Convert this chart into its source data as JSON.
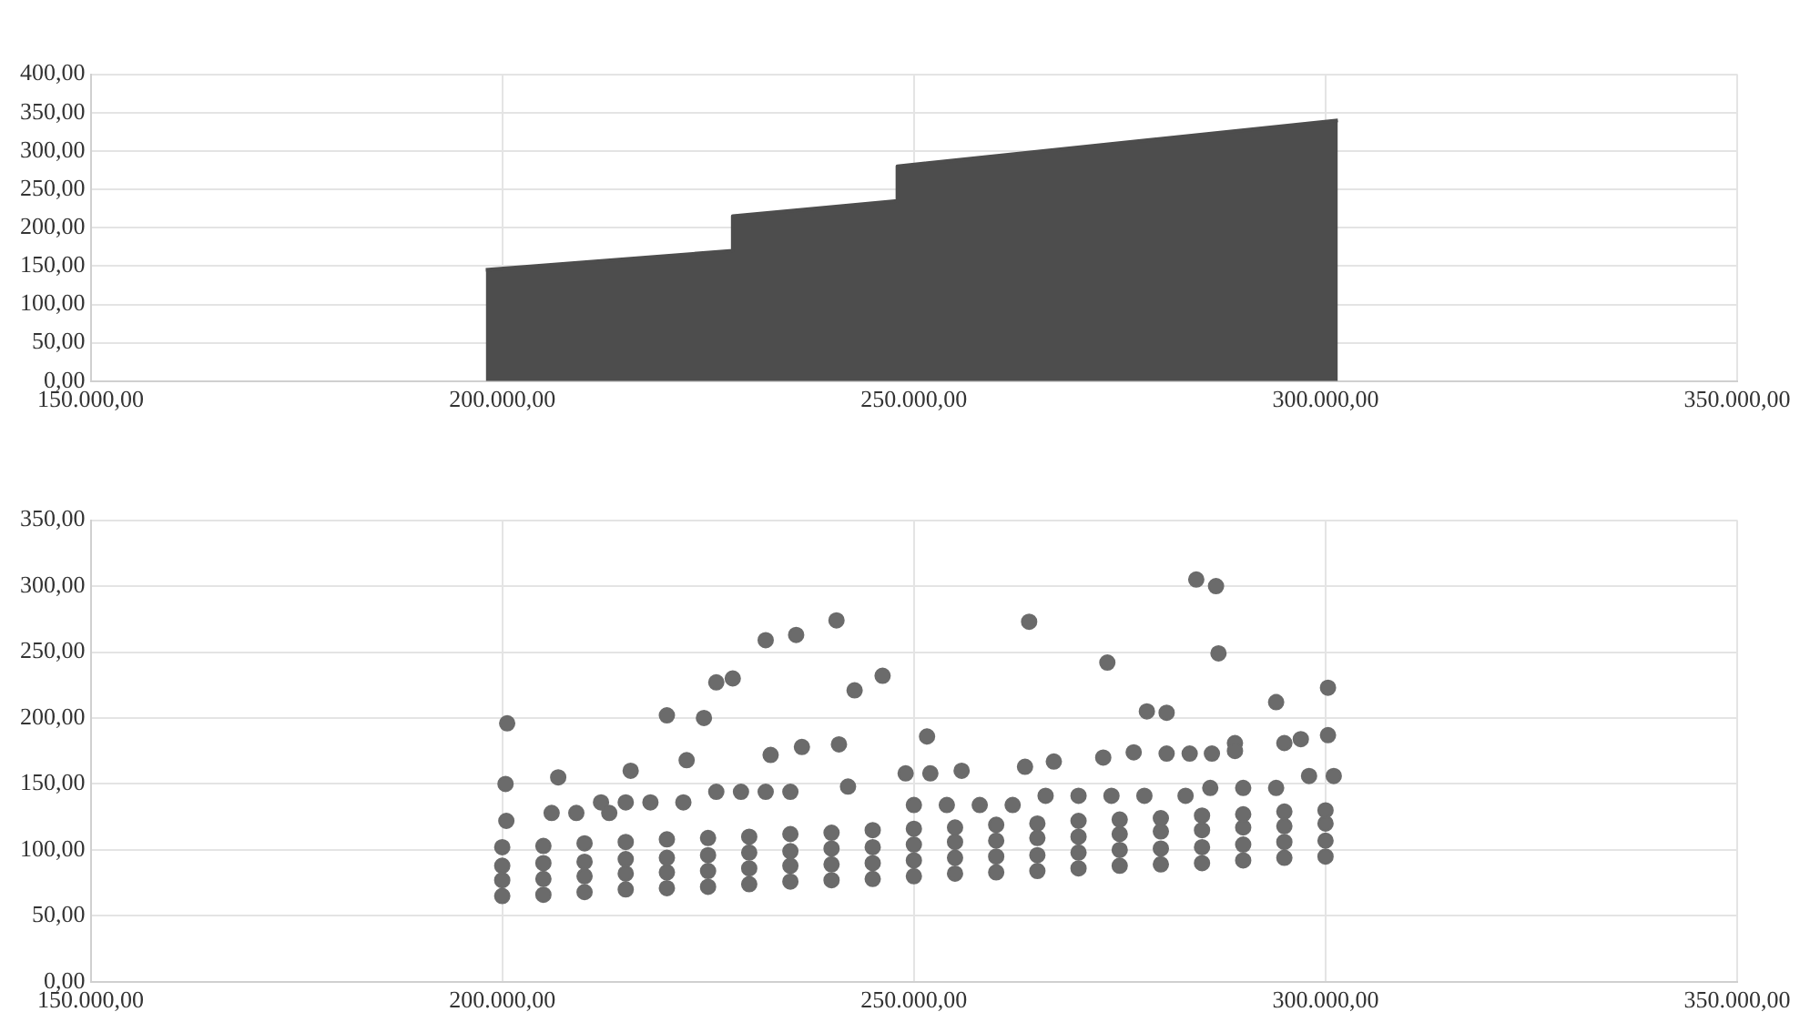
{
  "chart_data": [
    {
      "type": "area",
      "color": "#4d4d4d",
      "grid": true,
      "x": [
        198000,
        228000,
        228000,
        248000,
        248000,
        301500
      ],
      "values": [
        145,
        170,
        215,
        235,
        280,
        340
      ],
      "xlim": [
        150000,
        350000
      ],
      "xticks": [
        {
          "value": 150000,
          "label": "150.000,00"
        },
        {
          "value": 200000,
          "label": "200.000,00"
        },
        {
          "value": 250000,
          "label": "250.000,00"
        },
        {
          "value": 300000,
          "label": "300.000,00"
        },
        {
          "value": 350000,
          "label": "350.000,00"
        }
      ],
      "ylim": [
        0,
        400
      ],
      "yticks": [
        {
          "value": 0,
          "label": "0,00"
        },
        {
          "value": 50,
          "label": "50,00"
        },
        {
          "value": 100,
          "label": "100,00"
        },
        {
          "value": 150,
          "label": "150,00"
        },
        {
          "value": 200,
          "label": "200,00"
        },
        {
          "value": 250,
          "label": "250,00"
        },
        {
          "value": 300,
          "label": "300,00"
        },
        {
          "value": 350,
          "label": "350,00"
        },
        {
          "value": 400,
          "label": "400,00"
        }
      ]
    },
    {
      "type": "scatter",
      "color": "#6b6b6b",
      "grid": true,
      "marker": "circle",
      "x": [
        200000,
        205000,
        210000,
        215000,
        220000,
        225000,
        230000,
        235000,
        240000,
        245000,
        250000,
        255000,
        260000,
        265000,
        270000,
        275000,
        280000,
        285000,
        290000,
        295000,
        300000,
        200000,
        205000,
        210000,
        215000,
        220000,
        225000,
        230000,
        235000,
        240000,
        245000,
        250000,
        255000,
        260000,
        265000,
        270000,
        275000,
        280000,
        285000,
        290000,
        295000,
        300000,
        200000,
        205000,
        210000,
        215000,
        220000,
        225000,
        230000,
        235000,
        240000,
        245000,
        250000,
        255000,
        260000,
        265000,
        270000,
        275000,
        280000,
        285000,
        290000,
        295000,
        300000,
        200000,
        205000,
        210000,
        215000,
        220000,
        225000,
        230000,
        235000,
        240000,
        245000,
        250000,
        255000,
        260000,
        265000,
        270000,
        275000,
        280000,
        285000,
        290000,
        295000,
        300000,
        200600,
        200400,
        206800,
        200500,
        215600,
        220000,
        224500,
        226000,
        228000,
        222400,
        232000,
        235700,
        240600,
        242800,
        246200,
        232600,
        236400,
        240900,
        242000,
        206000,
        209000,
        213000,
        212000,
        215000,
        218000,
        222000,
        226000,
        229000,
        232000,
        235000,
        264000,
        273500,
        284300,
        286700,
        287000,
        278300,
        280700,
        294000,
        300300,
        251600,
        249000,
        252000,
        255800,
        263500,
        267000,
        273000,
        276700,
        280700,
        283500,
        286200,
        289000,
        289000,
        295000,
        297000,
        300300,
        250000,
        254000,
        258000,
        262000,
        266000,
        270000,
        274000,
        278000,
        283000,
        286000,
        290000,
        294000,
        298000,
        301000
      ],
      "values": [
        65,
        66,
        68,
        70,
        71,
        72,
        74,
        76,
        77,
        78,
        80,
        82,
        83,
        84,
        86,
        88,
        89,
        90,
        92,
        94,
        95,
        77,
        78,
        80,
        82,
        83,
        84,
        86,
        88,
        89,
        90,
        92,
        94,
        95,
        96,
        98,
        100,
        101,
        102,
        104,
        106,
        107,
        88,
        90,
        91,
        93,
        94,
        96,
        98,
        99,
        101,
        102,
        104,
        106,
        107,
        109,
        110,
        112,
        114,
        115,
        117,
        118,
        120,
        102,
        103,
        105,
        106,
        108,
        109,
        110,
        112,
        113,
        115,
        116,
        117,
        119,
        120,
        122,
        123,
        124,
        126,
        127,
        129,
        130,
        196,
        150,
        155,
        122,
        160,
        202,
        200,
        227,
        230,
        168,
        259,
        263,
        274,
        221,
        232,
        172,
        178,
        180,
        148,
        128,
        128,
        128,
        136,
        136,
        136,
        136,
        144,
        144,
        144,
        144,
        273,
        242,
        305,
        300,
        249,
        205,
        204,
        212,
        223,
        186,
        158,
        158,
        160,
        163,
        167,
        170,
        174,
        173,
        173,
        173,
        181,
        175,
        181,
        184,
        187,
        134,
        134,
        134,
        134,
        141,
        141,
        141,
        141,
        141,
        147,
        147,
        147,
        156,
        156
      ],
      "xlim": [
        150000,
        350000
      ],
      "xticks": [
        {
          "value": 150000,
          "label": "150.000,00"
        },
        {
          "value": 200000,
          "label": "200.000,00"
        },
        {
          "value": 250000,
          "label": "250.000,00"
        },
        {
          "value": 300000,
          "label": "300.000,00"
        },
        {
          "value": 350000,
          "label": "350.000,00"
        }
      ],
      "ylim": [
        0,
        350
      ],
      "yticks": [
        {
          "value": 0,
          "label": "0,00"
        },
        {
          "value": 50,
          "label": "50,00"
        },
        {
          "value": 100,
          "label": "100,00"
        },
        {
          "value": 150,
          "label": "150,00"
        },
        {
          "value": 200,
          "label": "200,00"
        },
        {
          "value": 250,
          "label": "250,00"
        },
        {
          "value": 300,
          "label": "300,00"
        },
        {
          "value": 350,
          "label": "350,00"
        }
      ]
    }
  ]
}
